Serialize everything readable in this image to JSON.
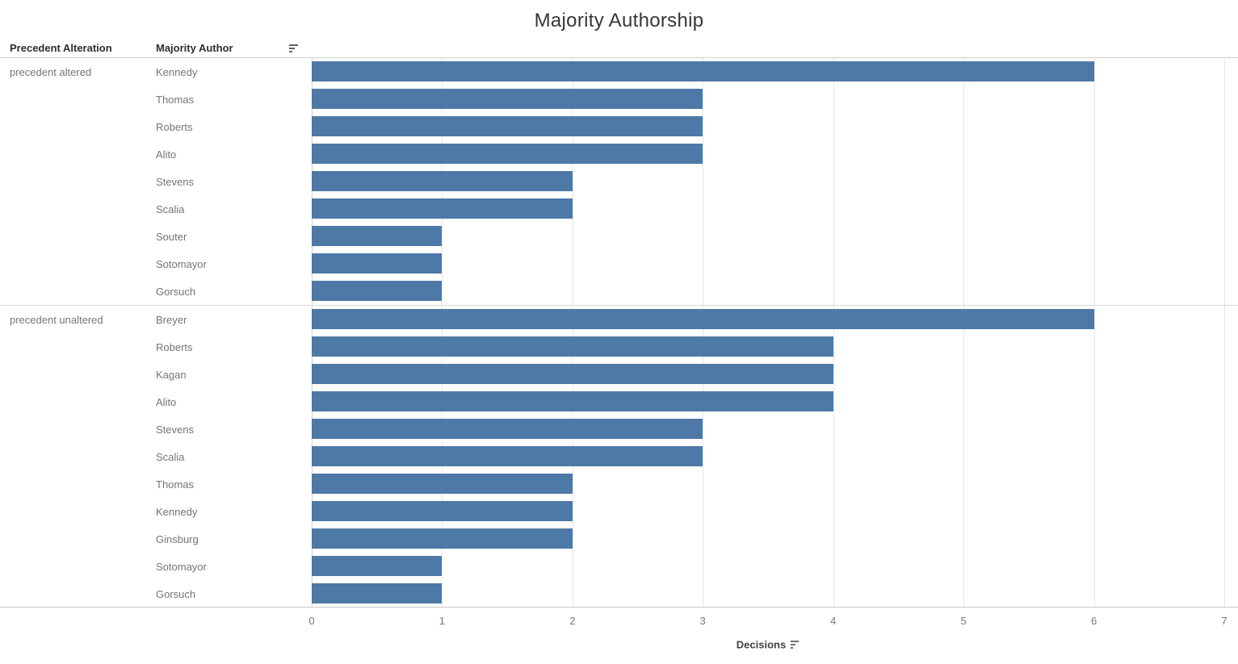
{
  "title": "Majority Authorship",
  "header": {
    "precedent_col": "Precedent Alteration",
    "author_col": "Majority Author",
    "sort_icon": "sort-descending-icon"
  },
  "axis": {
    "label": "Decisions",
    "ticks": [
      "0",
      "1",
      "2",
      "3",
      "4",
      "5",
      "6",
      "7"
    ],
    "min": 0,
    "max": 7,
    "sort_icon": "sort-descending-icon"
  },
  "colors": {
    "bar": "#4e79a7",
    "gridline": "#e6e6e6",
    "divider": "#d6d6d6",
    "title_text": "#363636",
    "row_label_text": "#757575"
  },
  "chart_data": {
    "type": "bar",
    "orientation": "horizontal",
    "title": "Majority Authorship",
    "xlabel": "Decisions",
    "ylabel": "",
    "xlim": [
      0,
      7
    ],
    "x_ticks": [
      0,
      1,
      2,
      3,
      4,
      5,
      6,
      7
    ],
    "grid": true,
    "legend": false,
    "bar_color": "#4e79a7",
    "row_fields": [
      "Precedent Alteration",
      "Majority Author"
    ],
    "groups": [
      {
        "category": "precedent altered",
        "rows": [
          {
            "author": "Kennedy",
            "value": 6
          },
          {
            "author": "Thomas",
            "value": 3
          },
          {
            "author": "Roberts",
            "value": 3
          },
          {
            "author": "Alito",
            "value": 3
          },
          {
            "author": "Stevens",
            "value": 2
          },
          {
            "author": "Scalia",
            "value": 2
          },
          {
            "author": "Souter",
            "value": 1
          },
          {
            "author": "Sotomayor",
            "value": 1
          },
          {
            "author": "Gorsuch",
            "value": 1
          }
        ]
      },
      {
        "category": "precedent unaltered",
        "rows": [
          {
            "author": "Breyer",
            "value": 6
          },
          {
            "author": "Roberts",
            "value": 4
          },
          {
            "author": "Kagan",
            "value": 4
          },
          {
            "author": "Alito",
            "value": 4
          },
          {
            "author": "Stevens",
            "value": 3
          },
          {
            "author": "Scalia",
            "value": 3
          },
          {
            "author": "Thomas",
            "value": 2
          },
          {
            "author": "Kennedy",
            "value": 2
          },
          {
            "author": "Ginsburg",
            "value": 2
          },
          {
            "author": "Sotomayor",
            "value": 1
          },
          {
            "author": "Gorsuch",
            "value": 1
          }
        ]
      }
    ]
  }
}
